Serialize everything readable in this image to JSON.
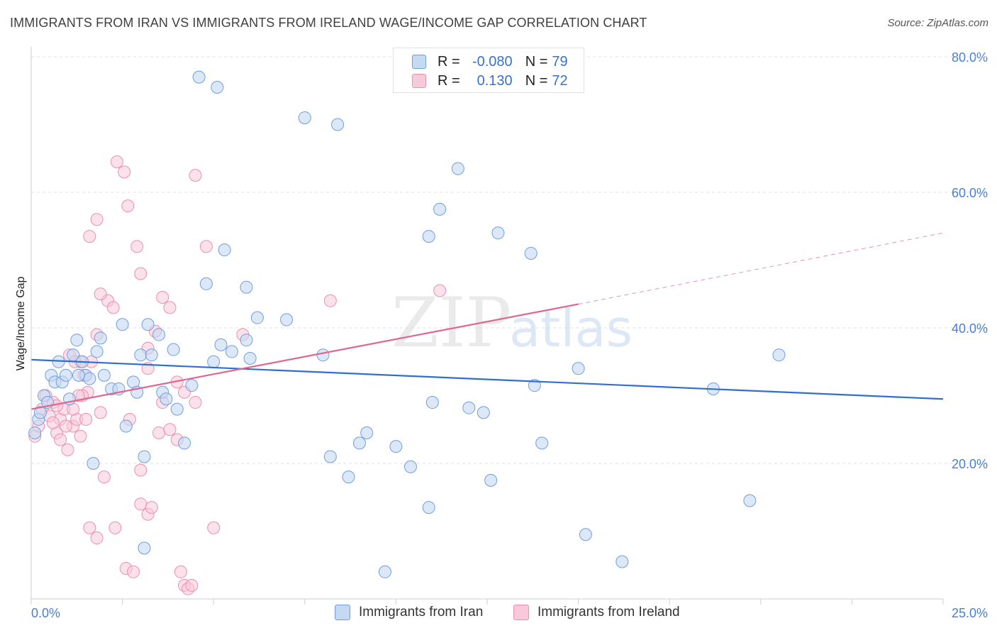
{
  "header": {
    "title": "IMMIGRANTS FROM IRAN VS IMMIGRANTS FROM IRELAND WAGE/INCOME GAP CORRELATION CHART",
    "source": "Source: ZipAtlas.com"
  },
  "stats_legend": {
    "rows": [
      {
        "r_label": "R =",
        "r_value": "-0.080",
        "n_label": "N =",
        "n_value": "79"
      },
      {
        "r_label": "R =",
        "r_value": "0.130",
        "n_label": "N =",
        "n_value": "72"
      }
    ]
  },
  "watermark": {
    "zip": "ZIP",
    "atlas": "atlas"
  },
  "colors": {
    "iran_fill": "#c5d9f4",
    "iran_stroke": "#6f9ee0",
    "iran_line": "#2f6fd0",
    "ireland_fill": "#f8cad9",
    "ireland_stroke": "#ee8fae",
    "ireland_line": "#e0668f",
    "grid": "#dde3ea",
    "tick": "#4a7fd0"
  },
  "chart_data": {
    "type": "scatter",
    "title": "IMMIGRANTS FROM IRAN VS IMMIGRANTS FROM IRELAND WAGE/INCOME GAP CORRELATION CHART",
    "xlabel": "",
    "ylabel": "Wage/Income Gap",
    "xlim": [
      0,
      25
    ],
    "ylim": [
      0,
      80
    ],
    "x_tick_labels": [
      "0.0%",
      "25.0%"
    ],
    "y_ticks": [
      20,
      40,
      60,
      80
    ],
    "y_tick_labels": [
      "20.0%",
      "40.0%",
      "60.0%",
      "80.0%"
    ],
    "legend": [
      "Immigrants from Iran",
      "Immigrants from Ireland"
    ],
    "series": [
      {
        "name": "Immigrants from Iran",
        "trend": {
          "x": [
            0,
            25
          ],
          "y": [
            35.3,
            29.5
          ]
        },
        "points": [
          [
            0.1,
            24.5
          ],
          [
            0.2,
            26.5
          ],
          [
            0.25,
            27.5
          ],
          [
            0.35,
            30
          ],
          [
            0.45,
            29
          ],
          [
            0.55,
            33
          ],
          [
            0.65,
            32
          ],
          [
            0.75,
            35
          ],
          [
            0.85,
            32
          ],
          [
            0.95,
            33
          ],
          [
            1.05,
            29.5
          ],
          [
            1.15,
            36
          ],
          [
            1.25,
            38.2
          ],
          [
            1.4,
            35
          ],
          [
            1.5,
            33
          ],
          [
            1.6,
            32.5
          ],
          [
            1.7,
            20
          ],
          [
            1.8,
            36.5
          ],
          [
            1.9,
            38.5
          ],
          [
            2.0,
            33
          ],
          [
            2.2,
            31
          ],
          [
            2.4,
            31
          ],
          [
            2.5,
            40.5
          ],
          [
            2.6,
            25.5
          ],
          [
            2.8,
            32
          ],
          [
            3.0,
            36
          ],
          [
            3.1,
            21
          ],
          [
            3.2,
            40.5
          ],
          [
            3.3,
            36
          ],
          [
            3.5,
            39
          ],
          [
            3.6,
            30.5
          ],
          [
            3.9,
            36.8
          ],
          [
            4.0,
            28
          ],
          [
            4.2,
            23
          ],
          [
            4.4,
            31.5
          ],
          [
            4.8,
            46.5
          ],
          [
            5.0,
            35
          ],
          [
            5.2,
            37.5
          ],
          [
            5.5,
            36.5
          ],
          [
            5.9,
            38.2
          ],
          [
            6.0,
            35.5
          ],
          [
            6.2,
            41.5
          ],
          [
            7.0,
            41.2
          ],
          [
            8.0,
            36
          ],
          [
            8.2,
            21
          ],
          [
            8.7,
            18
          ],
          [
            9.0,
            23
          ],
          [
            9.2,
            24.5
          ],
          [
            10.0,
            22.5
          ],
          [
            4.6,
            77
          ],
          [
            5.1,
            75.5
          ],
          [
            7.5,
            71
          ],
          [
            8.4,
            70
          ],
          [
            11.7,
            63.5
          ],
          [
            11.2,
            57.5
          ],
          [
            10.9,
            53.5
          ],
          [
            12.8,
            54
          ],
          [
            13.7,
            51
          ],
          [
            5.3,
            51.5
          ],
          [
            5.9,
            46
          ],
          [
            11.0,
            29
          ],
          [
            12.0,
            28.2
          ],
          [
            12.4,
            27.5
          ],
          [
            13.8,
            31.5
          ],
          [
            14.0,
            23
          ],
          [
            12.6,
            17.5
          ],
          [
            10.4,
            19.5
          ],
          [
            10.9,
            13.5
          ],
          [
            15.0,
            34
          ],
          [
            15.2,
            9.5
          ],
          [
            16.2,
            5.5
          ],
          [
            18.7,
            31
          ],
          [
            19.7,
            14.5
          ],
          [
            20.5,
            36
          ],
          [
            9.7,
            4
          ],
          [
            3.1,
            7.5
          ],
          [
            3.7,
            29.5
          ],
          [
            2.9,
            30.5
          ],
          [
            1.3,
            33
          ]
        ]
      },
      {
        "name": "Immigrants from Ireland",
        "trend": {
          "x": [
            0,
            15
          ],
          "y": [
            28,
            43.5
          ]
        },
        "trend_dashed": {
          "x": [
            15,
            25
          ],
          "y": [
            43.5,
            54
          ]
        },
        "points": [
          [
            0.1,
            24
          ],
          [
            0.2,
            25.5
          ],
          [
            0.3,
            28
          ],
          [
            0.4,
            30
          ],
          [
            0.5,
            27
          ],
          [
            0.6,
            29
          ],
          [
            0.7,
            24.5
          ],
          [
            0.8,
            26.5
          ],
          [
            0.9,
            28
          ],
          [
            1.0,
            22
          ],
          [
            1.05,
            36
          ],
          [
            1.15,
            25.5
          ],
          [
            1.25,
            26.5
          ],
          [
            1.35,
            35
          ],
          [
            1.45,
            33
          ],
          [
            1.55,
            30.5
          ],
          [
            1.65,
            35
          ],
          [
            1.8,
            39
          ],
          [
            1.9,
            27.5
          ],
          [
            2.0,
            18
          ],
          [
            2.1,
            44
          ],
          [
            2.25,
            43
          ],
          [
            2.35,
            64.5
          ],
          [
            2.55,
            63
          ],
          [
            2.65,
            58
          ],
          [
            2.9,
            52
          ],
          [
            3.0,
            48
          ],
          [
            3.2,
            37
          ],
          [
            3.4,
            39.5
          ],
          [
            3.6,
            44.5
          ],
          [
            3.8,
            43
          ],
          [
            4.0,
            32
          ],
          [
            4.2,
            30.5
          ],
          [
            4.5,
            29
          ],
          [
            4.8,
            52
          ],
          [
            4.5,
            62.5
          ],
          [
            5.8,
            39
          ],
          [
            8.2,
            44
          ],
          [
            11.2,
            45.5
          ],
          [
            1.9,
            45
          ],
          [
            1.6,
            53.5
          ],
          [
            1.8,
            56
          ],
          [
            1.4,
            30
          ],
          [
            1.3,
            30
          ],
          [
            1.6,
            10.5
          ],
          [
            1.8,
            9
          ],
          [
            2.3,
            10.5
          ],
          [
            2.6,
            4.5
          ],
          [
            2.8,
            4
          ],
          [
            3.0,
            19
          ],
          [
            3.0,
            14
          ],
          [
            3.2,
            12.5
          ],
          [
            3.3,
            13.5
          ],
          [
            3.5,
            24.5
          ],
          [
            3.6,
            29
          ],
          [
            3.8,
            25
          ],
          [
            4.0,
            23.5
          ],
          [
            4.1,
            4
          ],
          [
            4.2,
            2
          ],
          [
            4.3,
            1.5
          ],
          [
            4.4,
            2
          ],
          [
            5.0,
            10.5
          ],
          [
            3.2,
            34
          ],
          [
            2.7,
            26.5
          ],
          [
            0.6,
            26
          ],
          [
            0.7,
            28.5
          ],
          [
            0.8,
            23.5
          ],
          [
            1.15,
            28
          ],
          [
            1.35,
            24
          ],
          [
            1.5,
            26.5
          ],
          [
            1.2,
            35
          ],
          [
            0.95,
            25.5
          ]
        ]
      }
    ]
  },
  "bottom_legend": {
    "iran_label": "Immigrants from Iran",
    "ireland_label": "Immigrants from Ireland"
  }
}
